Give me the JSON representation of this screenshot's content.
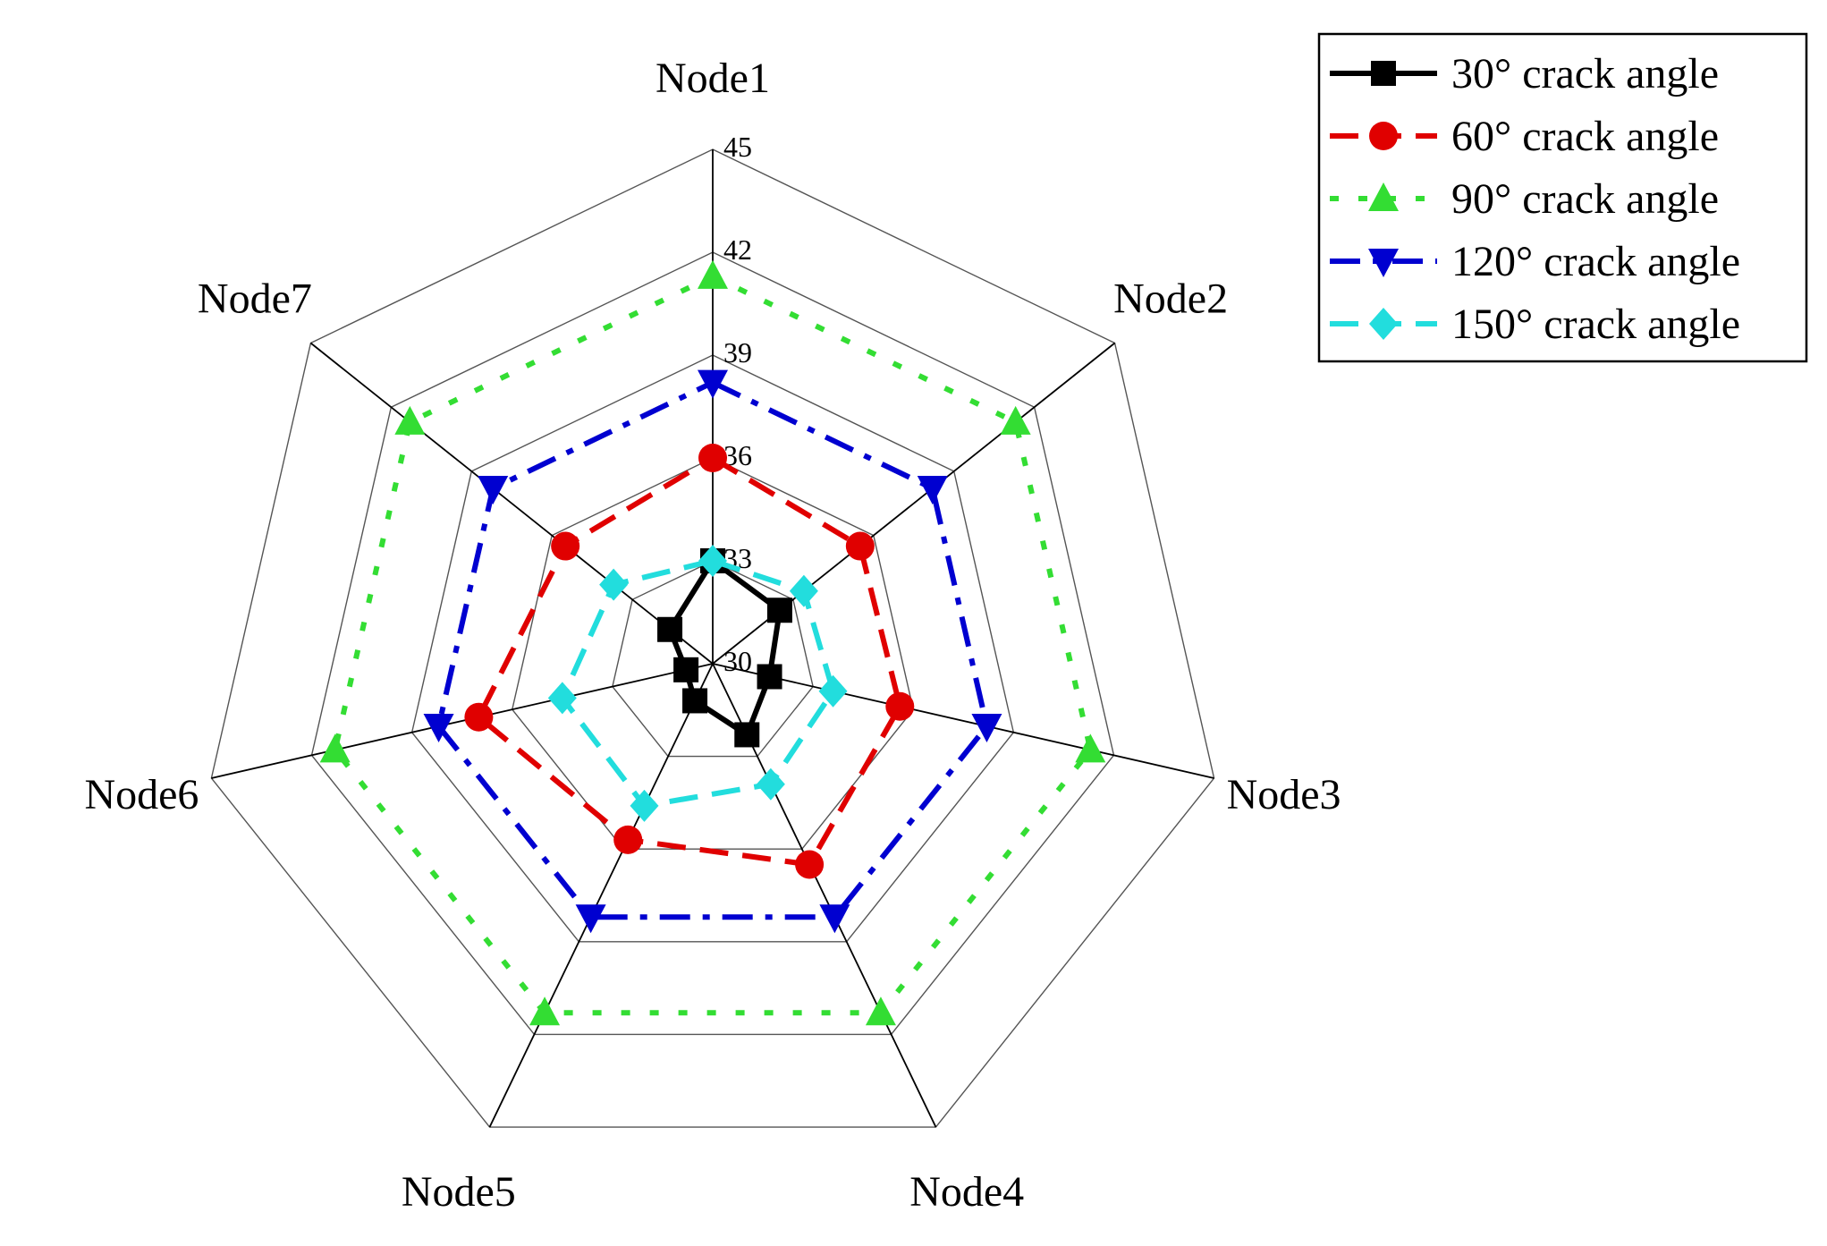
{
  "chart_data": {
    "type": "radar",
    "title": "",
    "axes": [
      "Node1",
      "Node2",
      "Node3",
      "Node4",
      "Node5",
      "Node6",
      "Node7"
    ],
    "rlim": [
      30,
      45
    ],
    "ticks": [
      "30",
      "33",
      "36",
      "39",
      "42",
      "45"
    ],
    "grid": true,
    "legend_position": "top-right",
    "series": [
      {
        "name": "30° crack angle",
        "color": "#000000",
        "marker": "square",
        "dash": "solid",
        "values": [
          33.0,
          32.5,
          31.7,
          32.3,
          31.2,
          30.8,
          31.6
        ]
      },
      {
        "name": "60° crack angle",
        "color": "#e00000",
        "marker": "circle",
        "dash": "dash",
        "values": [
          36.0,
          35.5,
          35.6,
          36.5,
          35.7,
          37.0,
          35.5
        ]
      },
      {
        "name": "90° crack angle",
        "color": "#33dd33",
        "marker": "triangle-up",
        "dash": "dot",
        "values": [
          41.3,
          41.3,
          41.3,
          41.3,
          41.3,
          41.3,
          41.3
        ]
      },
      {
        "name": "120° crack angle",
        "color": "#0000d0",
        "marker": "triangle-down",
        "dash": "dashdot",
        "values": [
          38.2,
          38.2,
          38.2,
          38.2,
          38.2,
          38.2,
          38.2
        ]
      },
      {
        "name": "150° crack angle",
        "color": "#22dddd",
        "marker": "diamond",
        "dash": "dash",
        "values": [
          33.0,
          33.4,
          33.6,
          33.9,
          34.6,
          34.5,
          33.7
        ]
      }
    ]
  }
}
